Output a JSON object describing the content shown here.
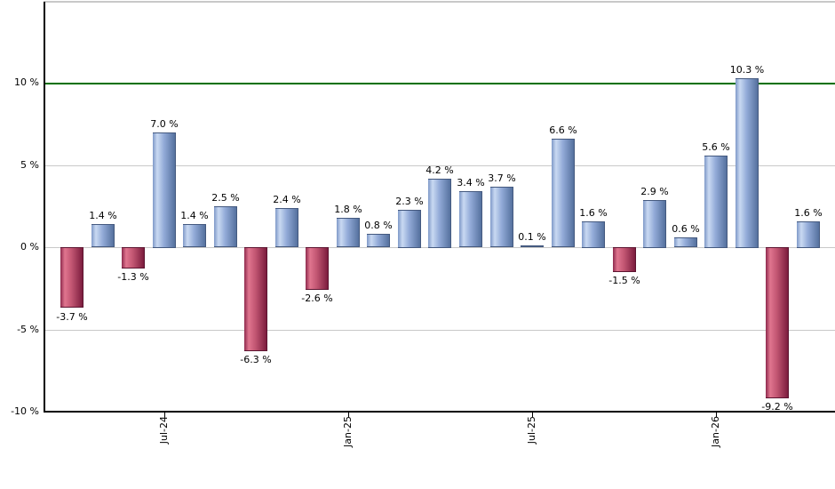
{
  "chart_data": {
    "type": "bar",
    "title": "",
    "xlabel": "",
    "ylabel": "",
    "grid": true,
    "legend": "none",
    "ylim": [
      -10.04,
      14.93
    ],
    "bars": [
      {
        "value": -3.7,
        "label": "-3.7 %"
      },
      {
        "value": 1.4,
        "label": "1.4 %"
      },
      {
        "value": -1.3,
        "label": "-1.3 %"
      },
      {
        "value": 7.0,
        "label": "7.0 %"
      },
      {
        "value": 1.4,
        "label": "1.4 %"
      },
      {
        "value": 2.5,
        "label": "2.5 %"
      },
      {
        "value": -6.3,
        "label": "-6.3 %"
      },
      {
        "value": 2.4,
        "label": "2.4 %"
      },
      {
        "value": -2.6,
        "label": "-2.6 %"
      },
      {
        "value": 1.8,
        "label": "1.8 %"
      },
      {
        "value": 0.8,
        "label": "0.8 %"
      },
      {
        "value": 2.3,
        "label": "2.3 %"
      },
      {
        "value": 4.2,
        "label": "4.2 %"
      },
      {
        "value": 3.4,
        "label": "3.4 %"
      },
      {
        "value": 3.7,
        "label": "3.7 %"
      },
      {
        "value": 0.1,
        "label": "0.1 %"
      },
      {
        "value": 6.6,
        "label": "6.6 %"
      },
      {
        "value": 1.6,
        "label": "1.6 %"
      },
      {
        "value": -1.5,
        "label": "-1.5 %"
      },
      {
        "value": 2.9,
        "label": "2.9 %"
      },
      {
        "value": 0.6,
        "label": "0.6 %"
      },
      {
        "value": 5.6,
        "label": "5.6 %"
      },
      {
        "value": 10.3,
        "label": "10.3 %"
      },
      {
        "value": -9.2,
        "label": "-9.2 %"
      },
      {
        "value": 1.6,
        "label": "1.6 %"
      }
    ],
    "x_ticks": [
      {
        "index": 3,
        "label": "Jul-24"
      },
      {
        "index": 9,
        "label": "Jan-25"
      },
      {
        "index": 15,
        "label": "Jul-25"
      },
      {
        "index": 21,
        "label": "Jan-26"
      }
    ],
    "y_ticks": [
      {
        "value": 10,
        "label": "10 %"
      },
      {
        "value": 5,
        "label": "5 %"
      },
      {
        "value": 0,
        "label": "0 %"
      },
      {
        "value": -5,
        "label": "-5 %"
      },
      {
        "value": -10,
        "label": "-10 %"
      }
    ],
    "gridline_values": [
      5,
      0,
      -5
    ],
    "threshold_line": {
      "value": 10,
      "color": "#007000"
    },
    "colors": {
      "positive_bar_stops": [
        [
          "0%",
          "#7f99c8"
        ],
        [
          "20%",
          "#c9d9f2"
        ],
        [
          "50%",
          "#93abd8"
        ],
        [
          "100%",
          "#55719e"
        ]
      ],
      "negative_bar_stops": [
        [
          "0%",
          "#8e2a4d"
        ],
        [
          "20%",
          "#e0758f"
        ],
        [
          "50%",
          "#c25672"
        ],
        [
          "100%",
          "#7c1c3e"
        ]
      ],
      "positive_border": "#44597f",
      "negative_border": "#5c1430",
      "gridline": "#c9c9c9",
      "axis": "#000000",
      "top_border": "#c8c8c8",
      "text": "#000000"
    }
  }
}
